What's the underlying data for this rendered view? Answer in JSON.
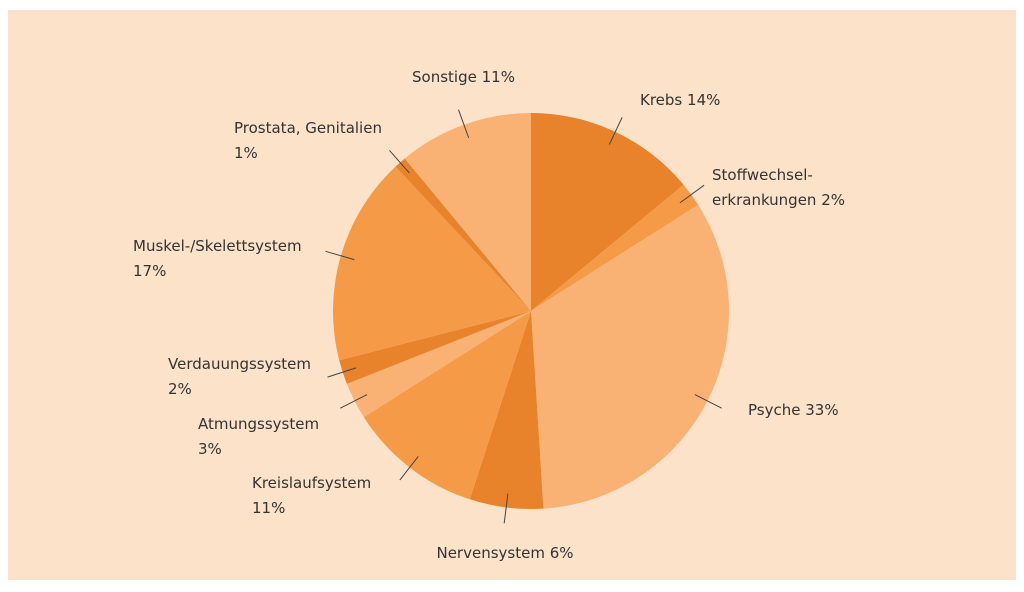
{
  "chart_data": {
    "type": "pie",
    "categories": [
      "Krebs",
      "Stoffwechsel-\nerkrankungen",
      "Psyche",
      "Nervensystem",
      "Kreislaufsystem",
      "Atmungssystem",
      "Verdauungssystem",
      "Muskel-/Skelettsystem",
      "Prostata, Genitalien",
      "Sonstige"
    ],
    "values": [
      14,
      2,
      33,
      6,
      11,
      3,
      2,
      17,
      1,
      11
    ],
    "value_labels": [
      "14%",
      "2%",
      "33%",
      "6%",
      "11%",
      "3%",
      "2%",
      "17%",
      "1%",
      "11%"
    ],
    "colors": [
      "#e8832b",
      "#f59b48",
      "#f9b273",
      "#e8832b",
      "#f59b48",
      "#f9b273",
      "#e8832b",
      "#f59b48",
      "#e8832b",
      "#f9b273"
    ]
  }
}
